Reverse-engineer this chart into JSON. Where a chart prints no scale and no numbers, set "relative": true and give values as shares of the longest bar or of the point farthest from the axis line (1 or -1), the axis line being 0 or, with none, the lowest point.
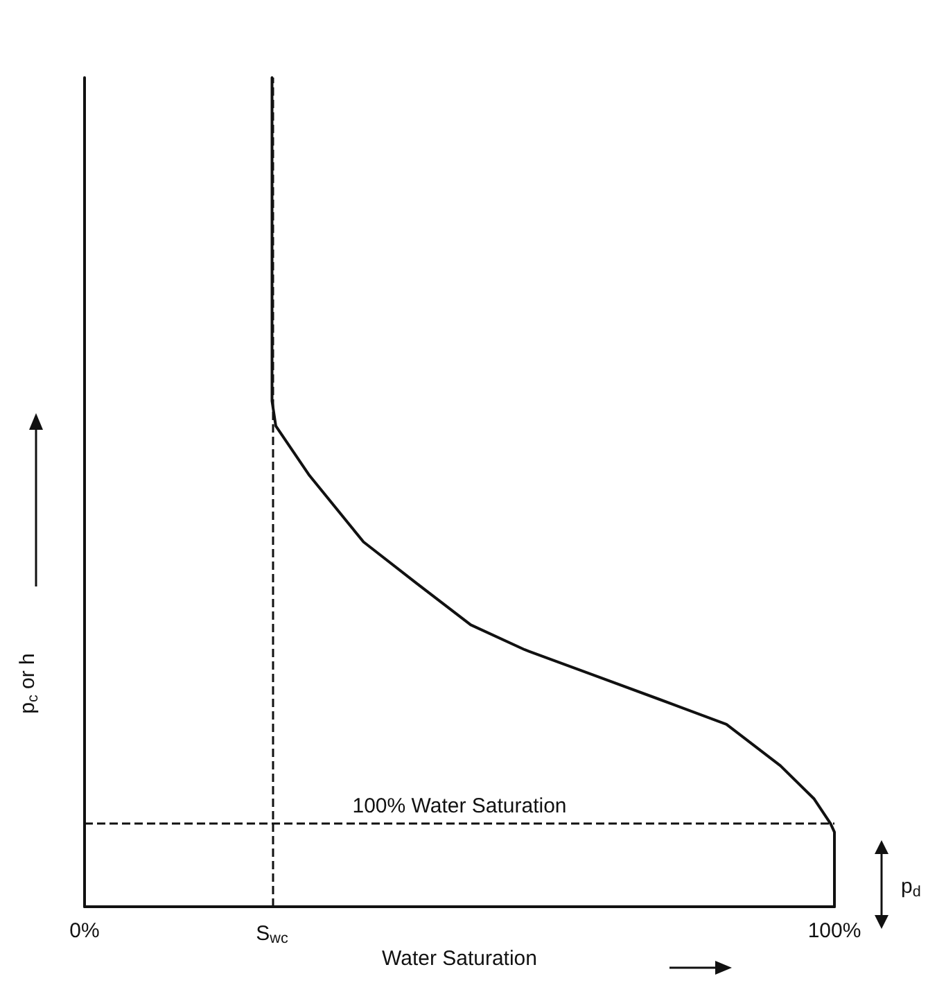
{
  "chart_data": {
    "type": "line",
    "relative": true,
    "xlabel": "Water Saturation",
    "ylabel": "p$_{c}$ or h",
    "xlim": [
      0,
      100
    ],
    "xticks": [
      {
        "value": 0,
        "label": "0%"
      },
      {
        "value": 100,
        "label": "100%"
      }
    ],
    "series": [
      {
        "color": "#111111",
        "x": [
          25,
          25,
          25.5,
          30,
          37.2,
          44.3,
          51.5,
          58.7,
          67.7,
          76.7,
          85.6,
          92.8,
          97.3,
          99.5,
          100,
          100
        ],
        "values": [
          1,
          0.61,
          0.58,
          0.52,
          0.44,
          0.39,
          0.34,
          0.31,
          0.28,
          0.25,
          0.22,
          0.17,
          0.13,
          0.1,
          0.09,
          0
        ]
      }
    ],
    "ref_lines": [
      {
        "axis": "y",
        "value": 0.1,
        "label": "100% Water Saturation",
        "line_style": "dashed",
        "color": "#111111"
      },
      {
        "axis": "x",
        "value": 25,
        "label": null,
        "line_style": "dashed",
        "color": "#111111"
      }
    ],
    "annotations": [
      {
        "text": "S$_{wc}$",
        "x": 25,
        "y": 0
      },
      "p$_{d}$"
    ],
    "grid": false,
    "marker": "none",
    "line_style": "solid"
  }
}
